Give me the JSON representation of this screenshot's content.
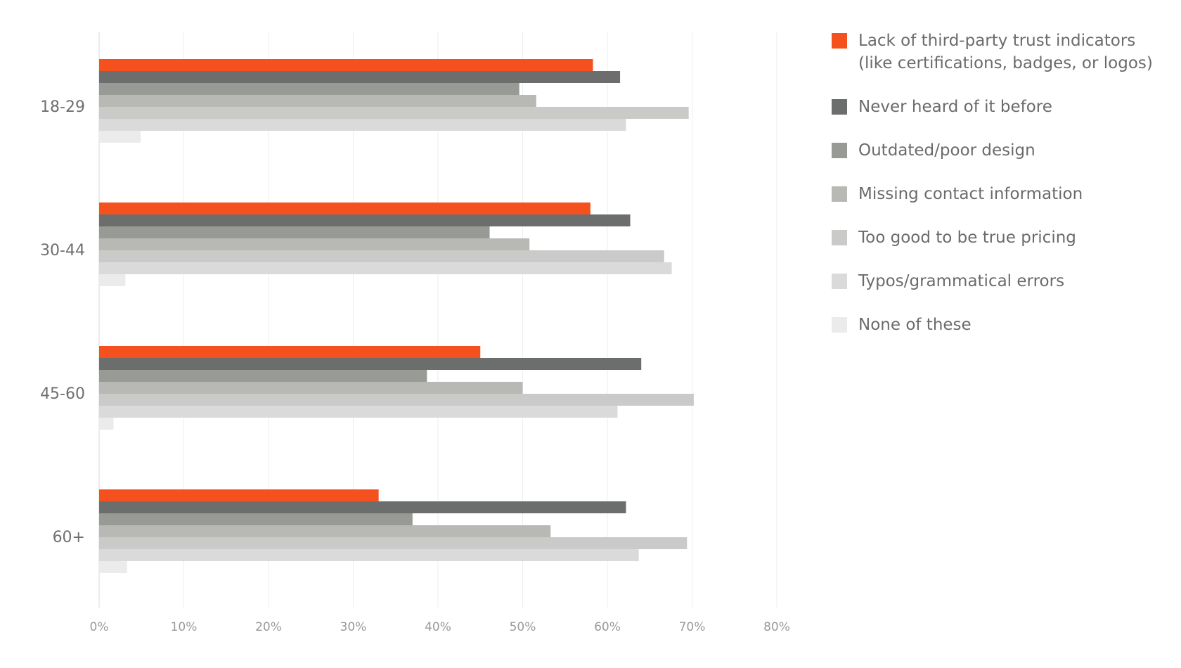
{
  "chart_data": {
    "type": "bar",
    "orientation": "horizontal",
    "categories": [
      "18-29",
      "30-44",
      "45-60",
      "60+"
    ],
    "xlim": [
      0,
      80
    ],
    "x_ticks": [
      "0%",
      "10%",
      "20%",
      "30%",
      "40%",
      "50%",
      "60%",
      "70%",
      "80%"
    ],
    "grid": true,
    "legend_position": "right",
    "series": [
      {
        "name": "Lack of third-party trust indicators (like certifications, badges, or logos)",
        "color": "#f4511e",
        "values": [
          58.3,
          58.0,
          45.0,
          33.0
        ]
      },
      {
        "name": "Never heard of it before",
        "color": "#6b6e6c",
        "values": [
          61.5,
          62.7,
          64.0,
          62.2
        ]
      },
      {
        "name": "Outdated/poor design",
        "color": "#989a95",
        "values": [
          49.6,
          46.1,
          38.7,
          37.0
        ]
      },
      {
        "name": "Missing contact information",
        "color": "#b8b8b5",
        "values": [
          51.6,
          50.8,
          50.0,
          53.3
        ]
      },
      {
        "name": "Too good to be true pricing",
        "color": "#cacac8",
        "values": [
          69.6,
          66.7,
          70.2,
          69.4
        ]
      },
      {
        "name": "Typos/grammatical errors",
        "color": "#dadada",
        "values": [
          62.2,
          67.6,
          61.2,
          63.7
        ]
      },
      {
        "name": "None of these",
        "color": "#ebebeb",
        "values": [
          4.9,
          3.1,
          1.7,
          3.3
        ]
      }
    ]
  }
}
